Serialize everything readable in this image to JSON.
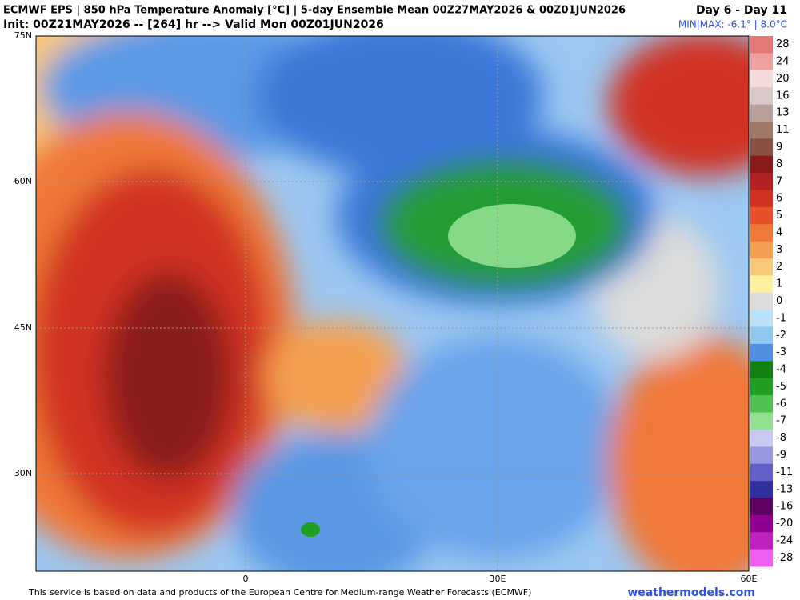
{
  "header": {
    "title": "ECMWF EPS | 850 hPa Temperature Anomaly [°C] | 5-day Ensemble Mean 00Z27MAY2026 & 00Z01JUN2026",
    "subtitle": "Init: 00Z21MAY2026 -- [264] hr --> Valid Mon 00Z01JUN2026",
    "range": "Day 6 - Day 11",
    "minmax": "MIN|MAX: -6.1° | 8.0°C"
  },
  "map": {
    "lat_labels": [
      "75N",
      "60N",
      "45N",
      "30N"
    ],
    "lon_labels": [
      "0",
      "30E",
      "60E"
    ]
  },
  "colorbar": {
    "levels": [
      {
        "value": 28,
        "color": "#e87878"
      },
      {
        "value": 24,
        "color": "#f0a0a0"
      },
      {
        "value": 20,
        "color": "#f5dada"
      },
      {
        "value": 16,
        "color": "#d8c8c8"
      },
      {
        "value": 13,
        "color": "#b8a098"
      },
      {
        "value": 11,
        "color": "#a07868"
      },
      {
        "value": 9,
        "color": "#885040"
      },
      {
        "value": 8,
        "color": "#8b1a1a"
      },
      {
        "value": 7,
        "color": "#b22020"
      },
      {
        "value": 6,
        "color": "#d03020"
      },
      {
        "value": 5,
        "color": "#e8502a"
      },
      {
        "value": 4,
        "color": "#f07838"
      },
      {
        "value": 3,
        "color": "#f5a050"
      },
      {
        "value": 2,
        "color": "#f8c878"
      },
      {
        "value": 1,
        "color": "#fff0a0"
      },
      {
        "value": 0,
        "color": "#dcdcdc"
      },
      {
        "value": -1,
        "color": "#b8e0f8"
      },
      {
        "value": -2,
        "color": "#90c8f0"
      },
      {
        "value": -3,
        "color": "#5090e0"
      },
      {
        "value": -4,
        "color": "#108010"
      },
      {
        "value": -5,
        "color": "#20a020"
      },
      {
        "value": -6,
        "color": "#50c050"
      },
      {
        "value": -7,
        "color": "#90e090"
      },
      {
        "value": -8,
        "color": "#c8c8f0"
      },
      {
        "value": -9,
        "color": "#9898e0"
      },
      {
        "value": -11,
        "color": "#6060c8"
      },
      {
        "value": -13,
        "color": "#3030a0"
      },
      {
        "value": -16,
        "color": "#600060"
      },
      {
        "value": -20,
        "color": "#900090"
      },
      {
        "value": -24,
        "color": "#c020c0"
      },
      {
        "value": -28,
        "color": "#f060f0"
      }
    ]
  },
  "footer": {
    "credit": "This service is based on data and products of the European Centre for Medium-range Weather Forecasts (ECMWF)",
    "site": "weathermodels.com"
  }
}
